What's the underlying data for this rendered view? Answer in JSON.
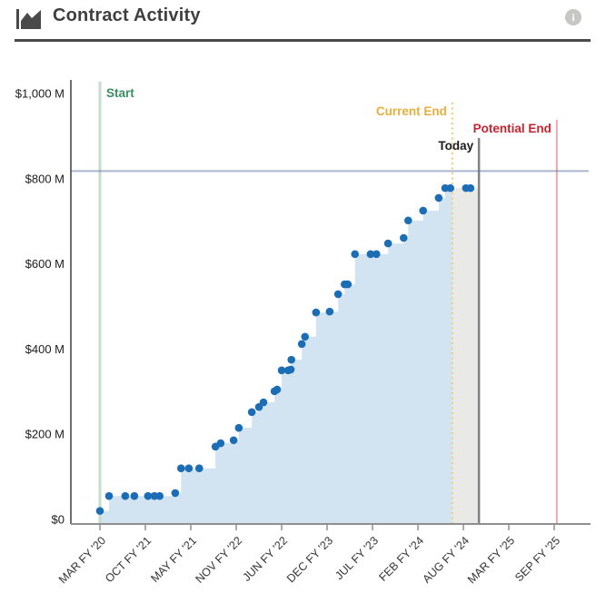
{
  "header": {
    "title": "Contract Activity",
    "icon": "area-chart-icon",
    "info_icon": "info-circle-icon",
    "info_glyph": "i"
  },
  "chart_data": {
    "type": "scatter",
    "title": "Contract Activity",
    "y_axis": {
      "unit": "$ millions",
      "range": [
        0,
        1000
      ],
      "tick_labels": [
        "$1,000 M",
        "$800 M",
        "$600 M",
        "$400 M",
        "$200 M",
        "$0"
      ],
      "tick_values": [
        1000,
        800,
        600,
        400,
        200,
        0
      ]
    },
    "x_axis": {
      "tick_labels": [
        "MAR FY '20",
        "OCT FY '21",
        "MAY FY '21",
        "NOV FY '22",
        "JUN FY '22",
        "DEC FY '23",
        "JUL FY '23",
        "FEB FY '24",
        "AUG FY '24",
        "MAR FY '25",
        "SEP FY '25"
      ],
      "tick_month_offsets": [
        0,
        7,
        14,
        21,
        28,
        35,
        42,
        49,
        56,
        63,
        70
      ]
    },
    "points_desc": "cumulative obligated amount, [months since MAR FY '20, $M]",
    "points": [
      [
        0,
        20
      ],
      [
        1.4,
        55
      ],
      [
        3.9,
        55
      ],
      [
        5.3,
        55
      ],
      [
        7.4,
        55
      ],
      [
        8.4,
        55
      ],
      [
        9.2,
        55
      ],
      [
        11.6,
        62
      ],
      [
        12.5,
        120
      ],
      [
        13.7,
        120
      ],
      [
        15.3,
        120
      ],
      [
        17.8,
        171
      ],
      [
        18.6,
        179
      ],
      [
        20.6,
        186
      ],
      [
        21.4,
        215
      ],
      [
        23.4,
        252
      ],
      [
        24.5,
        264
      ],
      [
        25.2,
        275
      ],
      [
        26.9,
        301
      ],
      [
        27.3,
        305
      ],
      [
        28,
        350
      ],
      [
        29,
        350
      ],
      [
        29.4,
        352
      ],
      [
        29.5,
        375
      ],
      [
        31.1,
        412
      ],
      [
        31.6,
        429
      ],
      [
        33.3,
        486
      ],
      [
        35.4,
        488
      ],
      [
        36.7,
        529
      ],
      [
        37.7,
        552
      ],
      [
        38.2,
        552
      ],
      [
        39.3,
        623
      ],
      [
        41.7,
        623
      ],
      [
        42.6,
        623
      ],
      [
        44.4,
        648
      ],
      [
        46.8,
        661
      ],
      [
        47.5,
        702
      ],
      [
        49.8,
        725
      ],
      [
        52.2,
        755
      ],
      [
        53.2,
        778
      ],
      [
        54,
        778
      ],
      [
        56.4,
        778
      ],
      [
        57.1,
        778
      ]
    ],
    "reference_lines": {
      "horizontal": {
        "value": 818,
        "color": "rgba(100,122,170,0.55)"
      },
      "vertical": [
        {
          "label": "Start",
          "m": 0,
          "line_color": "#c3decc",
          "label_color": "#3a8e62",
          "style": "solid"
        },
        {
          "label": "Current End",
          "m": 54.3,
          "line_color": "#f0cd74",
          "label_color": "#e9af3d",
          "style": "dashed"
        },
        {
          "label": "Today",
          "m": 58.4,
          "line_color": "#818181",
          "label_color": "#1c1c1c",
          "style": "solid"
        },
        {
          "label": "Potential End",
          "m": 70.4,
          "line_color": "#f2a6ae",
          "label_color": "#c8232e",
          "style": "solid"
        }
      ]
    },
    "shaded_region": {
      "from_m": 54.3,
      "to_m": 58.4,
      "color": "#e9e9e5"
    },
    "area_color": "#d2e4f2",
    "dot_color": "#1b6db5",
    "axis_color": "#8f8f8f",
    "spine_color": "#3e3e3e"
  }
}
